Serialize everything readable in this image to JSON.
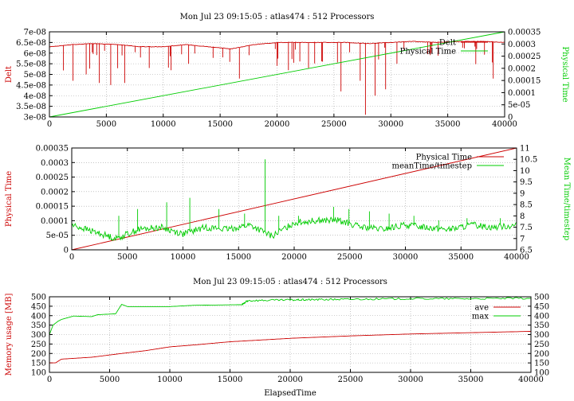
{
  "chart_data": [
    {
      "type": "line",
      "title": "Mon Jul 23 09:15:05 : atlas474 : 512 Processors",
      "ylabel": "Delt",
      "y2label": "Physical Time",
      "xlim": [
        0,
        40000
      ],
      "ylim": [
        3e-08,
        7e-08
      ],
      "y2lim": [
        0,
        0.00035
      ],
      "xticks": [
        "0",
        "5000",
        "10000",
        "15000",
        "20000",
        "25000",
        "30000",
        "35000",
        "40000"
      ],
      "yticks": [
        "3e-08",
        "3.5e-08",
        "4e-08",
        "4.5e-08",
        "5e-08",
        "5.5e-08",
        "6e-08",
        "6.5e-08",
        "7e-08"
      ],
      "y2ticks": [
        "0",
        "5e-05",
        "0.0001",
        "0.00015",
        "0.0002",
        "0.00025",
        "0.0003",
        "0.00035"
      ],
      "grid": true,
      "legend_position": "top-right",
      "colors": {
        "left": "#cc0000",
        "right": "#00cc00"
      },
      "series": [
        {
          "name": "Delt",
          "axis": "left",
          "color": "#cc0000",
          "style": "noisy",
          "x": [
            0,
            2000,
            4000,
            6000,
            8000,
            10000,
            12000,
            14000,
            16000,
            18000,
            20000,
            22000,
            24000,
            26000,
            28000,
            30000,
            32000,
            34000,
            36000,
            38000,
            40000
          ],
          "y": [
            6.3e-08,
            6.4e-08,
            6.45e-08,
            6.4e-08,
            6.3e-08,
            6.3e-08,
            6.4e-08,
            6.3e-08,
            6.2e-08,
            6.4e-08,
            6.5e-08,
            6.5e-08,
            6.5e-08,
            6.5e-08,
            6.45e-08,
            6.5e-08,
            6.55e-08,
            6.5e-08,
            6.55e-08,
            6.55e-08,
            6.5e-08
          ],
          "spikes": [
            [
              2100,
              4.7e-08
            ],
            [
              3200,
              5e-08
            ],
            [
              4400,
              4.6e-08
            ],
            [
              5400,
              4.5e-08
            ],
            [
              6600,
              4.6e-08
            ],
            [
              8800,
              5.3e-08
            ],
            [
              10700,
              5.2e-08
            ],
            [
              12200,
              5.5e-08
            ],
            [
              15200,
              5.8e-08
            ],
            [
              16700,
              4.8e-08
            ],
            [
              17500,
              5.9e-08
            ],
            [
              20000,
              5.4e-08
            ],
            [
              21000,
              5.2e-08
            ],
            [
              22800,
              5.3e-08
            ],
            [
              24000,
              5.6e-08
            ],
            [
              25600,
              4.2e-08
            ],
            [
              27300,
              4.7e-08
            ],
            [
              27800,
              3.1e-08
            ],
            [
              28600,
              4e-08
            ],
            [
              29500,
              4.3e-08
            ],
            [
              30500,
              5.5e-08
            ],
            [
              33500,
              6e-08
            ],
            [
              39000,
              4.8e-08
            ]
          ]
        },
        {
          "name": "Physical Time",
          "axis": "right",
          "color": "#00cc00",
          "style": "smooth",
          "x": [
            0,
            40000
          ],
          "y": [
            0,
            0.00035
          ]
        }
      ]
    },
    {
      "type": "line",
      "title": "",
      "ylabel": "Physical Time",
      "y2label": "Mean Time/timestep",
      "xlim": [
        0,
        40000
      ],
      "ylim": [
        0,
        0.00035
      ],
      "y2lim": [
        6.5,
        11
      ],
      "xticks": [
        "0",
        "5000",
        "10000",
        "15000",
        "20000",
        "25000",
        "30000",
        "35000",
        "40000"
      ],
      "yticks": [
        "0",
        "5e-05",
        "0.0001",
        "0.00015",
        "0.0002",
        "0.00025",
        "0.0003",
        "0.00035"
      ],
      "y2ticks": [
        "6.5",
        "7",
        "7.5",
        "8",
        "8.5",
        "9",
        "9.5",
        "10",
        "10.5",
        "11"
      ],
      "grid": true,
      "legend_position": "top-right",
      "colors": {
        "left": "#cc0000",
        "right": "#00cc00"
      },
      "series": [
        {
          "name": "Physical Time",
          "axis": "left",
          "color": "#cc0000",
          "style": "smooth",
          "x": [
            0,
            40000
          ],
          "y": [
            0,
            0.00035
          ]
        },
        {
          "name": "meanTime/timestep",
          "axis": "right",
          "color": "#00cc00",
          "style": "noisy",
          "x": [
            0,
            2000,
            4000,
            6000,
            8000,
            10000,
            12000,
            14000,
            16000,
            18000,
            20000,
            22000,
            24000,
            26000,
            28000,
            30000,
            32000,
            34000,
            36000,
            38000,
            40000
          ],
          "y": [
            7.6,
            7.3,
            7.0,
            7.4,
            7.5,
            7.2,
            7.5,
            7.4,
            7.6,
            7.1,
            7.7,
            7.8,
            7.8,
            7.5,
            7.4,
            7.6,
            7.5,
            7.4,
            7.6,
            7.5,
            7.6
          ],
          "spikes": [
            [
              4200,
              8.0
            ],
            [
              5900,
              8.3
            ],
            [
              8500,
              8.6
            ],
            [
              10600,
              8.8
            ],
            [
              13200,
              8.3
            ],
            [
              15500,
              8.1
            ],
            [
              17400,
              10.5
            ],
            [
              18600,
              8.0
            ],
            [
              20400,
              8.0
            ],
            [
              23500,
              8.4
            ],
            [
              24900,
              8.3
            ],
            [
              26800,
              8.2
            ],
            [
              28500,
              8.1
            ],
            [
              30800,
              8.0
            ],
            [
              33000,
              7.8
            ],
            [
              35500,
              7.9
            ],
            [
              38500,
              7.9
            ]
          ]
        }
      ]
    },
    {
      "type": "line",
      "title": "Mon Jul 23 09:15:05 : atlas474 : 512 Processors",
      "xlabel": "ElapsedTime",
      "ylabel": "Memory usage [MB]",
      "xlim": [
        0,
        40000
      ],
      "ylim": [
        100,
        500
      ],
      "y2lim": [
        100,
        500
      ],
      "xticks": [
        "0",
        "5000",
        "10000",
        "15000",
        "20000",
        "25000",
        "30000",
        "35000",
        "40000"
      ],
      "yticks": [
        "100",
        "150",
        "200",
        "250",
        "300",
        "350",
        "400",
        "450",
        "500"
      ],
      "y2ticks": [
        "100",
        "150",
        "200",
        "250",
        "300",
        "350",
        "400",
        "450",
        "500"
      ],
      "grid": true,
      "legend_position": "top-right",
      "colors": {
        "left": "#cc0000",
        "right": "#00cc00"
      },
      "series": [
        {
          "name": "ave",
          "axis": "left",
          "color": "#cc0000",
          "style": "step",
          "x": [
            0,
            500,
            1000,
            3500,
            6000,
            8000,
            10000,
            12000,
            15000,
            20000,
            25000,
            30000,
            35000,
            40000
          ],
          "y": [
            150,
            150,
            170,
            180,
            200,
            215,
            235,
            245,
            262,
            280,
            293,
            303,
            310,
            317
          ]
        },
        {
          "name": "max",
          "axis": "left",
          "color": "#00cc00",
          "style": "step",
          "x": [
            0,
            300,
            700,
            1000,
            2000,
            3500,
            4000,
            5500,
            6000,
            6500,
            10000,
            12000,
            16000,
            16500,
            20000,
            22000,
            25000,
            30000,
            35000,
            40000
          ],
          "y": [
            300,
            350,
            370,
            380,
            398,
            395,
            405,
            410,
            460,
            448,
            448,
            455,
            458,
            480,
            483,
            485,
            487,
            490,
            490,
            492
          ]
        }
      ]
    }
  ]
}
